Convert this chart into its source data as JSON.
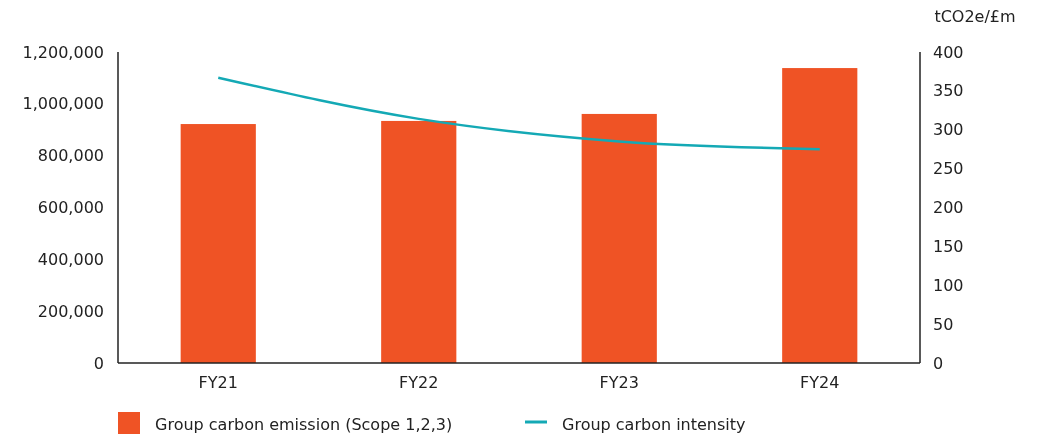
{
  "chart_data": {
    "type": "bar",
    "categories": [
      "FY21",
      "FY22",
      "FY23",
      "FY24"
    ],
    "y2label": "tCO2e/£m",
    "series": [
      {
        "name": "Group carbon emission (Scope 1,2,3)",
        "color": "#ef5325",
        "values": [
          922000,
          934000,
          961000,
          1138000
        ]
      },
      {
        "name": "Group carbon intensity",
        "type": "line",
        "axis": "y2",
        "color": "#14a9b5",
        "values": [
          367,
          314,
          285,
          275
        ]
      }
    ],
    "ylim": [
      0,
      1200000
    ],
    "yticks": [
      {
        "value": 0,
        "label": "0"
      },
      {
        "value": 200000,
        "label": "200,000"
      },
      {
        "value": 400000,
        "label": "400,000"
      },
      {
        "value": 600000,
        "label": "600,000"
      },
      {
        "value": 800000,
        "label": "800,000"
      },
      {
        "value": 1000000,
        "label": "1,000,000"
      },
      {
        "value": 1200000,
        "label": "1,200,000"
      }
    ],
    "y2lim": [
      0,
      400
    ],
    "y2ticks": [
      0,
      50,
      100,
      150,
      200,
      250,
      300,
      350,
      400
    ],
    "grid": false,
    "legend": "bottom",
    "marker": "none"
  }
}
